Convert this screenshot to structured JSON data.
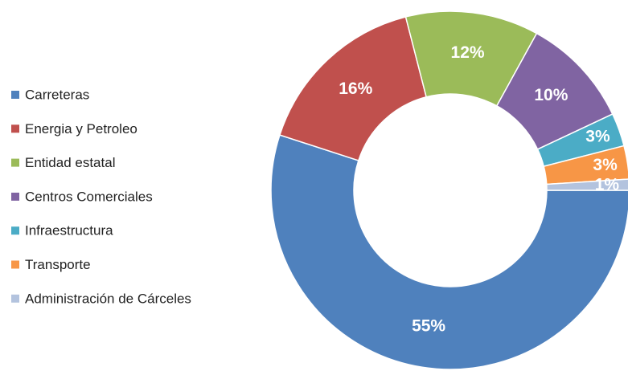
{
  "chart_data": {
    "type": "donut",
    "categories": [
      "Carreteras",
      "Energia y Petroleo",
      "Entidad estatal",
      "Centros Comerciales",
      "Infraestructura",
      "Transporte",
      "Administración de Cárceles"
    ],
    "values": [
      55,
      16,
      12,
      10,
      3,
      3,
      1
    ],
    "value_labels": [
      "55%",
      "16%",
      "12%",
      "10%",
      "3%",
      "3%",
      "1%"
    ],
    "colors": [
      "#4f81bd",
      "#c0504d",
      "#9bbb59",
      "#8064a2",
      "#4bacc6",
      "#f79646",
      "#b3c3de"
    ]
  }
}
